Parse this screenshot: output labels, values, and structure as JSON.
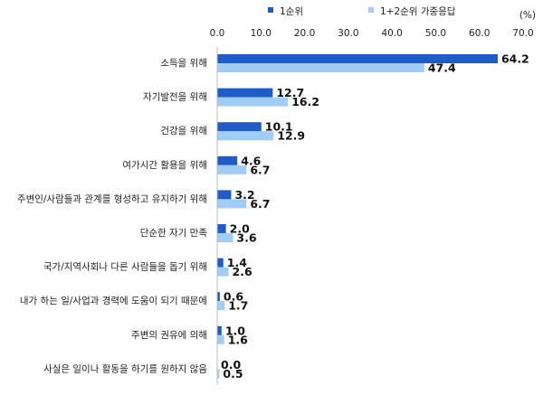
{
  "chart_data": {
    "type": "bar",
    "orientation": "horizontal",
    "unit": "(%)",
    "xlim": [
      0,
      70
    ],
    "ticks": [
      "0.0",
      "10.0",
      "20.0",
      "30.0",
      "40.0",
      "50.0",
      "60.0",
      "70.0"
    ],
    "grid": false,
    "legend": "top",
    "categories": [
      "소득을 위해",
      "자기발전을 위해",
      "건강을 위해",
      "여가시간 활용을 위해",
      "주변인/사람들과 관계를 형성하고 유지하기 위해",
      "단순한 자기 만족",
      "국가/지역사회나 다른 사람들을 돕기 위해",
      "내가 하는 일/사업과 경력에 도움이 되기 때문에",
      "주변의 권유에 의해",
      "사실은 일이나 활동을 하기를 원하지 않음"
    ],
    "series": [
      {
        "name": "1순위",
        "color": "#1f5bc9",
        "values": [
          64.2,
          12.7,
          10.1,
          4.6,
          3.2,
          2.0,
          1.4,
          0.6,
          1.0,
          0.0
        ],
        "labels": [
          "64.2",
          "12.7",
          "10.1",
          "4.6",
          "3.2",
          "2.0",
          "1.4",
          "0.6",
          "1.0",
          "0.0"
        ]
      },
      {
        "name": "1+2순위 가중응답",
        "color": "#9fcdf6",
        "values": [
          47.4,
          16.2,
          12.9,
          6.7,
          6.7,
          3.6,
          2.6,
          1.7,
          1.6,
          0.5
        ],
        "labels": [
          "47.4",
          "16.2",
          "12.9",
          "6.7",
          "6.7",
          "3.6",
          "2.6",
          "1.7",
          "1.6",
          "0.5"
        ]
      }
    ]
  }
}
